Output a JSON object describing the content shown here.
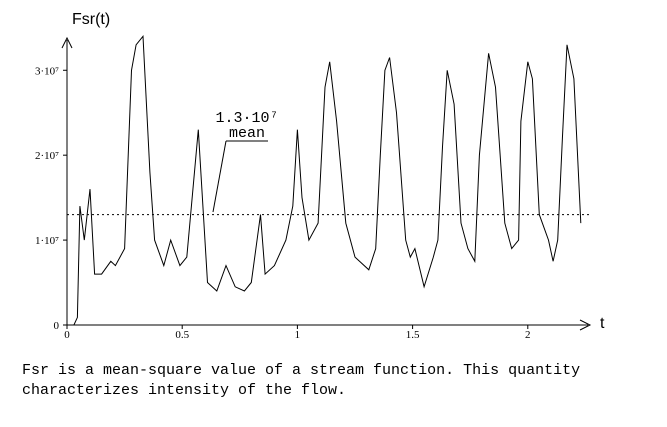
{
  "chart_data": {
    "type": "line",
    "y_label": "Fsr(t)",
    "x_label": "t",
    "x": [
      0,
      0.03,
      0.045,
      0.056,
      0.075,
      0.1,
      0.12,
      0.15,
      0.19,
      0.21,
      0.23,
      0.25,
      0.28,
      0.3,
      0.33,
      0.36,
      0.38,
      0.42,
      0.45,
      0.49,
      0.52,
      0.55,
      0.57,
      0.61,
      0.65,
      0.69,
      0.73,
      0.77,
      0.8,
      0.84,
      0.86,
      0.9,
      0.95,
      0.98,
      1.0,
      1.02,
      1.05,
      1.09,
      1.12,
      1.14,
      1.17,
      1.21,
      1.25,
      1.31,
      1.34,
      1.36,
      1.38,
      1.4,
      1.43,
      1.47,
      1.49,
      1.51,
      1.55,
      1.59,
      1.61,
      1.63,
      1.65,
      1.68,
      1.71,
      1.74,
      1.77,
      1.79,
      1.83,
      1.86,
      1.9,
      1.93,
      1.96,
      1.97,
      2.0,
      2.02,
      2.05,
      2.09,
      2.11,
      2.13,
      2.15,
      2.17,
      2.2,
      2.23
    ],
    "series": [
      {
        "name": "Fsr",
        "color": "#000000",
        "values": [
          0,
          0,
          900000,
          14000000,
          10000000,
          16000000,
          6000000,
          6000000,
          7500000,
          7000000,
          8000000,
          9000000,
          30000000,
          33000000,
          34000000,
          18000000,
          10000000,
          7000000,
          10000000,
          7000000,
          8000000,
          17000000,
          23000000,
          5000000,
          4000000,
          7000000,
          4500000,
          4000000,
          5000000,
          13000000,
          6000000,
          7000000,
          10000000,
          14000000,
          23000000,
          15000000,
          10000000,
          12000000,
          28000000,
          31000000,
          24000000,
          12000000,
          8000000,
          6500000,
          9000000,
          20000000,
          30000000,
          31500000,
          25000000,
          10000000,
          8000000,
          9000000,
          4500000,
          8000000,
          10000000,
          21000000,
          30000000,
          26000000,
          12000000,
          9000000,
          7500000,
          20000000,
          32000000,
          28000000,
          12000000,
          9000000,
          10000000,
          24000000,
          31000000,
          29000000,
          13000000,
          10000000,
          7500000,
          10000000,
          22000000,
          33000000,
          29000000,
          12000000
        ]
      }
    ],
    "xlim": [
      0,
      2.27
    ],
    "ylim": [
      0,
      33800000
    ],
    "xticks": [
      0,
      0.5,
      1,
      1.5,
      2
    ],
    "yticks": [
      0,
      {
        "value": 10000000,
        "label": "1·10⁷"
      },
      {
        "value": 20000000,
        "label": "2·10⁷"
      },
      {
        "value": 30000000,
        "label": "3·10⁷"
      }
    ],
    "mean": {
      "value": 13000000,
      "label": "1.3·10⁷",
      "text": "mean"
    },
    "caption": [
      "Fsr is a mean-square value of a stream function. This quantity",
      "characterizes intensity of the flow."
    ]
  }
}
